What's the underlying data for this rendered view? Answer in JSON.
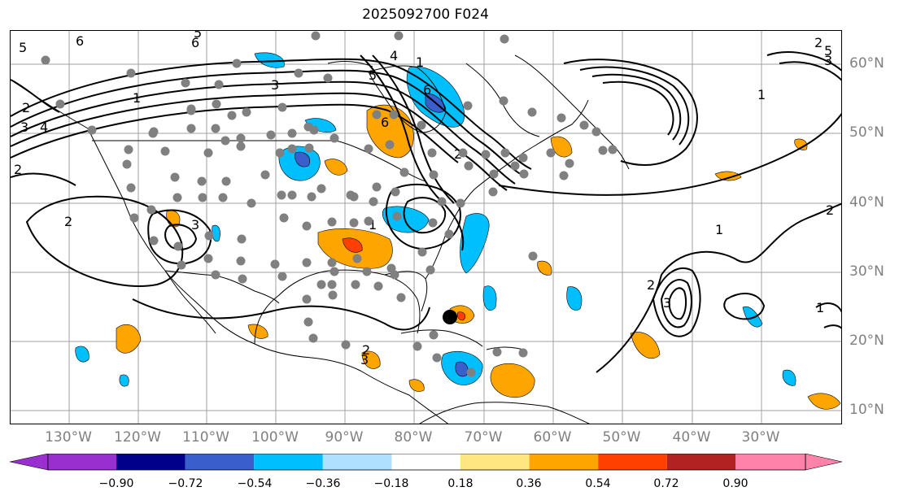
{
  "title": "2025092700 F024",
  "longitude_labels": [
    "130°W",
    "120°W",
    "110°W",
    "100°W",
    "90°W",
    "80°W",
    "70°W",
    "60°W",
    "50°W",
    "40°W",
    "30°W"
  ],
  "latitude_labels": [
    "60°N",
    "50°N",
    "40°N",
    "30°N",
    "20°N",
    "10°N"
  ],
  "colorbar": {
    "tick_labels": [
      "−0.90",
      "−0.72",
      "−0.54",
      "−0.36",
      "−0.18",
      "0.18",
      "0.36",
      "0.54",
      "0.72",
      "0.90"
    ],
    "colors": [
      "#9a2fd0",
      "#00008b",
      "#3a5fcd",
      "#00bfff",
      "#b0e0ff",
      "#ffffff",
      "#ffe680",
      "#ffa500",
      "#ff4000",
      "#b22222",
      "#ff82ab"
    ]
  },
  "contour_labels": [
    "5",
    "6",
    "6",
    "5",
    "4",
    "3",
    "2",
    "1",
    "2",
    "3",
    "2",
    "6",
    "5",
    "4",
    "3",
    "2",
    "1",
    "6",
    "1",
    "2",
    "3",
    "1",
    "2",
    "3",
    "5",
    "1",
    "2",
    "3",
    "2",
    "1"
  ],
  "map_style": {
    "contour_color": "#000000",
    "grid_color": "#a0a0a0",
    "station_marker_color": "#808080",
    "storm_marker_color": "#000000"
  }
}
